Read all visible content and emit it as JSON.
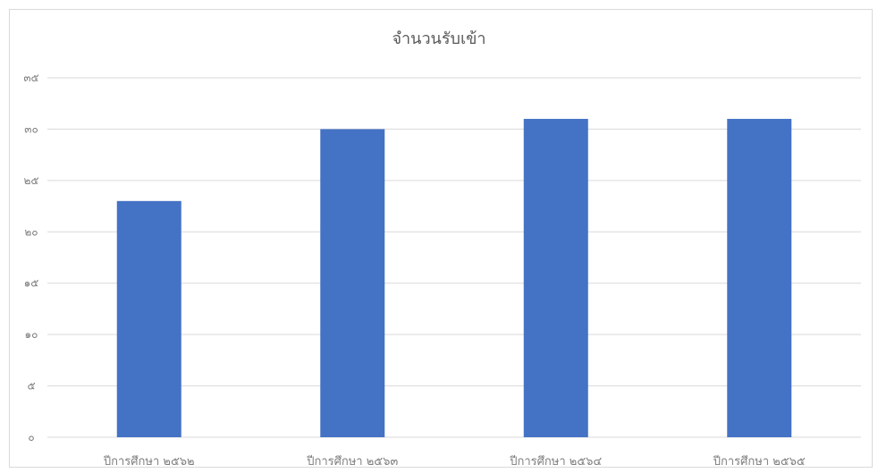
{
  "chart_data": {
    "type": "bar",
    "title": "จำนวนรับเข้า",
    "categories": [
      "ปีการศึกษา ๒๕๖๒",
      "ปีการศึกษา ๒๕๖๓",
      "ปีการศึกษา ๒๕๖๔",
      "ปีการศึกษา ๒๕๖๕"
    ],
    "values": [
      23,
      30,
      31,
      31
    ],
    "ylim": [
      0,
      35
    ],
    "yticks": [
      0,
      5,
      10,
      15,
      20,
      25,
      30,
      35
    ],
    "ytick_labels": [
      "๐",
      "๕",
      "๑๐",
      "๑๕",
      "๒๐",
      "๒๕",
      "๓๐",
      "๓๕"
    ],
    "grid": true,
    "bar_color": "#4472c4",
    "grid_color": "#d9d9d9"
  }
}
